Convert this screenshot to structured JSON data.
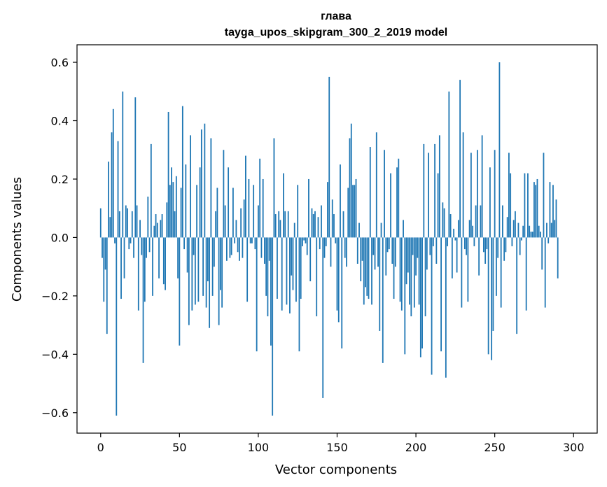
{
  "chart_data": {
    "type": "bar",
    "title": "глава",
    "subtitle": "tayga_upos_skipgram_300_2_2019 model",
    "xlabel": "Vector components",
    "ylabel": "Components values",
    "xlim": [
      -15,
      315
    ],
    "ylim": [
      -0.67,
      0.66
    ],
    "xticks": [
      0,
      50,
      100,
      150,
      200,
      250,
      300
    ],
    "yticks": [
      -0.6,
      -0.4,
      -0.2,
      0.0,
      0.2,
      0.4,
      0.6
    ],
    "xtick_labels": [
      "0",
      "50",
      "100",
      "150",
      "200",
      "250",
      "300"
    ],
    "ytick_labels": [
      "−0.6",
      "−0.4",
      "−0.2",
      "0.0",
      "0.2",
      "0.4",
      "0.6"
    ],
    "grid": false,
    "bar_color": "#1f77b4",
    "x_start": 0,
    "values": [
      0.1,
      -0.07,
      -0.22,
      -0.11,
      -0.33,
      0.26,
      0.07,
      0.36,
      0.44,
      -0.02,
      -0.61,
      0.33,
      0.09,
      -0.21,
      0.5,
      -0.14,
      0.11,
      0.1,
      -0.04,
      -0.02,
      0.09,
      -0.07,
      0.48,
      0.11,
      -0.25,
      0.06,
      -0.06,
      -0.43,
      -0.22,
      -0.07,
      0.14,
      -0.05,
      0.32,
      -0.2,
      0.04,
      0.08,
      0.05,
      -0.14,
      0.06,
      0.08,
      -0.16,
      -0.18,
      0.12,
      0.43,
      0.18,
      0.24,
      0.19,
      0.09,
      0.21,
      -0.14,
      -0.37,
      0.17,
      0.45,
      -0.04,
      0.25,
      -0.12,
      -0.3,
      0.35,
      -0.25,
      -0.06,
      -0.23,
      0.18,
      -0.22,
      0.24,
      0.37,
      -0.2,
      0.39,
      -0.24,
      -0.15,
      -0.31,
      0.34,
      -0.2,
      -0.1,
      0.09,
      0.17,
      -0.3,
      -0.18,
      -0.24,
      0.3,
      0.11,
      -0.08,
      0.24,
      -0.07,
      -0.06,
      0.17,
      -0.02,
      0.06,
      -0.05,
      -0.08,
      0.1,
      -0.07,
      0.13,
      0.28,
      -0.22,
      0.2,
      -0.02,
      -0.02,
      0.18,
      -0.04,
      -0.39,
      0.11,
      0.27,
      -0.07,
      0.2,
      -0.09,
      -0.2,
      -0.27,
      -0.08,
      -0.37,
      -0.61,
      0.34,
      0.08,
      -0.21,
      0.09,
      0.06,
      -0.25,
      0.22,
      0.09,
      -0.23,
      0.09,
      -0.26,
      -0.13,
      -0.18,
      0.05,
      -0.22,
      0.18,
      -0.39,
      -0.21,
      -0.03,
      -0.01,
      -0.02,
      -0.06,
      0.2,
      -0.15,
      0.1,
      0.08,
      0.09,
      -0.27,
      0.07,
      -0.04,
      0.11,
      -0.55,
      -0.07,
      -0.03,
      0.19,
      0.55,
      -0.1,
      0.13,
      0.08,
      -0.02,
      -0.25,
      -0.29,
      0.25,
      -0.38,
      0.09,
      -0.07,
      -0.1,
      0.17,
      0.34,
      0.39,
      0.18,
      0.18,
      0.2,
      -0.09,
      0.05,
      -0.15,
      -0.08,
      -0.23,
      -0.17,
      -0.2,
      -0.21,
      0.31,
      -0.23,
      -0.06,
      -0.11,
      0.36,
      -0.1,
      -0.32,
      0.05,
      -0.43,
      0.3,
      -0.13,
      -0.05,
      -0.04,
      0.22,
      -0.09,
      -0.21,
      -0.1,
      0.24,
      0.27,
      -0.22,
      -0.25,
      0.06,
      -0.4,
      -0.16,
      -0.12,
      -0.23,
      -0.27,
      -0.06,
      -0.24,
      -0.13,
      -0.07,
      -0.23,
      -0.41,
      -0.38,
      0.32,
      -0.27,
      -0.11,
      0.29,
      -0.06,
      -0.47,
      -0.03,
      0.32,
      -0.09,
      0.22,
      0.35,
      -0.39,
      0.12,
      0.1,
      -0.48,
      -0.03,
      0.5,
      0.08,
      -0.14,
      0.03,
      -0.01,
      -0.12,
      0.06,
      0.54,
      -0.24,
      0.36,
      -0.04,
      -0.06,
      -0.22,
      0.06,
      0.29,
      0.04,
      -0.03,
      0.11,
      0.3,
      -0.13,
      0.11,
      0.35,
      -0.05,
      -0.09,
      -0.04,
      -0.4,
      0.24,
      -0.42,
      -0.32,
      0.3,
      -0.2,
      -0.07,
      0.6,
      -0.24,
      0.11,
      -0.08,
      -0.05,
      0.07,
      0.29,
      0.22,
      -0.03,
      0.06,
      0.09,
      -0.33,
      0.05,
      -0.06,
      -0.01,
      0.04,
      0.22,
      -0.25,
      0.22,
      0.04,
      0.02,
      0.02,
      0.19,
      0.18,
      0.2,
      0.04,
      0.02,
      -0.11,
      0.29,
      -0.24,
      0.05,
      -0.02,
      0.19,
      0.05,
      0.18,
      0.06,
      0.13,
      -0.14
    ]
  }
}
